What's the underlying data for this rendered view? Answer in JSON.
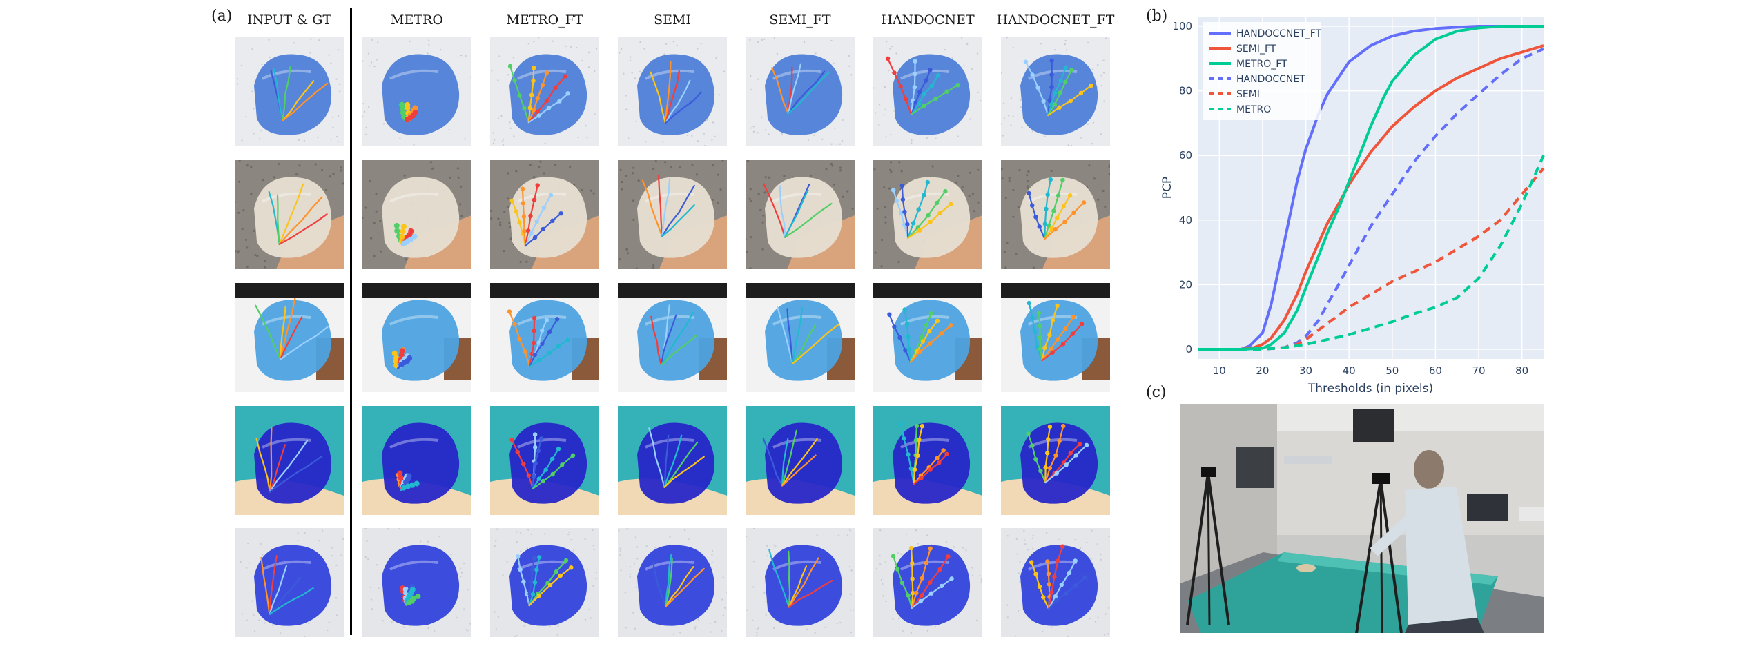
{
  "panel_a": {
    "label": "(a)",
    "columns": [
      "INPUT & GT",
      "METRO",
      "METRO_FT",
      "SEMI",
      "SEMI_FT",
      "HANDOCNET",
      "HANDOCNET_FT"
    ],
    "row_styles": [
      {
        "bg": "#e9ebee",
        "glove": "#4e7fd8",
        "pattern": "dots"
      },
      {
        "bg": "#8b8680",
        "glove": "#e7dfd2",
        "pattern": "gravel"
      },
      {
        "bg": "#f2f2f2",
        "glove": "#4ea3e0",
        "pattern": "plain"
      },
      {
        "bg": "#35b2b7",
        "glove": "#2727c8",
        "pattern": "drape"
      },
      {
        "bg": "#e4e6ea",
        "glove": "#3344dd",
        "pattern": "dots"
      }
    ]
  },
  "panel_b": {
    "label": "(b)"
  },
  "panel_c": {
    "label": "(c)"
  },
  "chart_data": {
    "type": "line",
    "xlabel": "Thresholds (in pixels)",
    "ylabel": "PCP",
    "xlim": [
      5,
      85
    ],
    "ylim": [
      -3,
      103
    ],
    "xticks": [
      10,
      20,
      30,
      40,
      50,
      60,
      70,
      80
    ],
    "yticks": [
      0,
      20,
      40,
      60,
      80,
      100
    ],
    "grid": true,
    "legend_position": "top-left",
    "background": "#e5ecf6",
    "series": [
      {
        "name": "HANDOCCNET_FT",
        "color": "#636efa",
        "dash": "solid",
        "x": [
          5,
          10,
          15,
          17,
          20,
          22,
          25,
          28,
          30,
          33,
          35,
          38,
          40,
          45,
          50,
          55,
          60,
          65,
          70,
          75,
          80,
          85
        ],
        "y": [
          0,
          0,
          0,
          1,
          5,
          14,
          33,
          52,
          62,
          73,
          79,
          85,
          89,
          94,
          97,
          98.5,
          99.3,
          99.7,
          100,
          100,
          100,
          100
        ]
      },
      {
        "name": "SEMI_FT",
        "color": "#ef553b",
        "dash": "solid",
        "x": [
          5,
          10,
          15,
          18,
          20,
          22,
          25,
          28,
          30,
          33,
          35,
          38,
          40,
          45,
          50,
          55,
          60,
          65,
          70,
          75,
          80,
          85
        ],
        "y": [
          0,
          0,
          0,
          0.5,
          1.5,
          3.5,
          9,
          17,
          24,
          33,
          39,
          46,
          51,
          61,
          69,
          75,
          80,
          84,
          87,
          90,
          92,
          94
        ]
      },
      {
        "name": "METRO_FT",
        "color": "#00cc96",
        "dash": "solid",
        "x": [
          5,
          10,
          15,
          20,
          22,
          25,
          28,
          30,
          33,
          35,
          38,
          40,
          43,
          45,
          48,
          50,
          55,
          60,
          65,
          70,
          75,
          80,
          85
        ],
        "y": [
          0,
          0,
          0,
          0.3,
          1.5,
          5,
          12,
          19,
          29,
          36,
          45,
          52,
          62,
          69,
          78,
          83,
          91,
          96,
          98.5,
          99.5,
          100,
          100,
          100
        ]
      },
      {
        "name": "HANDOCCNET",
        "color": "#636efa",
        "dash": "dashed",
        "x": [
          5,
          10,
          15,
          20,
          25,
          28,
          30,
          33,
          35,
          38,
          40,
          45,
          50,
          55,
          60,
          65,
          70,
          75,
          80,
          85
        ],
        "y": [
          0,
          0,
          0,
          0,
          0.5,
          2,
          4,
          9,
          14,
          21,
          26,
          38,
          48,
          58,
          66,
          73,
          79,
          85,
          90,
          93
        ]
      },
      {
        "name": "SEMI",
        "color": "#ef553b",
        "dash": "dashed",
        "x": [
          5,
          10,
          15,
          20,
          25,
          28,
          30,
          33,
          35,
          38,
          40,
          45,
          50,
          55,
          60,
          65,
          70,
          75,
          80,
          85
        ],
        "y": [
          0,
          0,
          0,
          0,
          0.5,
          1.5,
          3,
          6,
          8,
          11,
          13,
          17,
          21,
          24,
          27,
          31,
          35,
          40,
          48,
          56
        ]
      },
      {
        "name": "METRO",
        "color": "#00cc96",
        "dash": "dashed",
        "x": [
          5,
          10,
          15,
          20,
          25,
          30,
          35,
          40,
          45,
          50,
          55,
          60,
          65,
          70,
          75,
          80,
          85
        ],
        "y": [
          0,
          0,
          0,
          0,
          0.5,
          1.5,
          3,
          4.5,
          6.5,
          8.5,
          11,
          13,
          16,
          22,
          32,
          45,
          60
        ]
      }
    ]
  }
}
